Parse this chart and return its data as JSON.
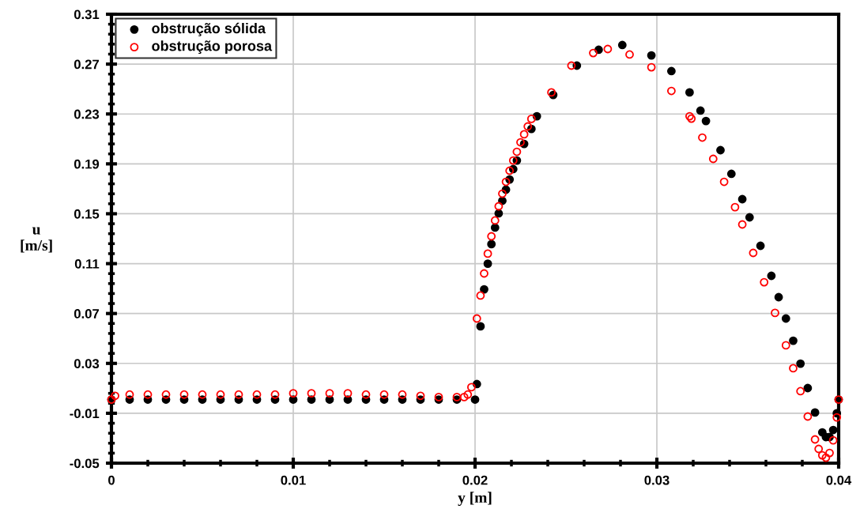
{
  "chart_data": {
    "type": "scatter",
    "xlabel": "y [m]",
    "ylabel": "u\n[m/s]",
    "xlim": [
      0,
      0.04
    ],
    "xticks": [
      0,
      0.01,
      0.02,
      0.03,
      0.04
    ],
    "ylim": [
      -0.05,
      0.31
    ],
    "yticks": [
      -0.05,
      -0.01,
      0.03,
      0.07,
      0.11,
      0.15,
      0.19,
      0.23,
      0.27,
      0.31
    ],
    "grid": true,
    "legend": "top left",
    "marker": "circle",
    "series": [
      {
        "name": "obstrução sólida",
        "color": "#000000",
        "x": [
          0,
          0.001,
          0.002,
          0.003,
          0.004,
          0.005,
          0.006,
          0.007,
          0.008,
          0.009,
          0.01,
          0.011,
          0.012,
          0.013,
          0.014,
          0.015,
          0.016,
          0.017,
          0.018,
          0.019,
          0.02,
          0.0201,
          0.0203,
          0.0205,
          0.0207,
          0.0209,
          0.0211,
          0.0213,
          0.0215,
          0.0217,
          0.0219,
          0.0221,
          0.0223,
          0.0227,
          0.0231,
          0.0234,
          0.0243,
          0.0256,
          0.0268,
          0.0281,
          0.0297,
          0.0308,
          0.0318,
          0.0324,
          0.0327,
          0.0335,
          0.0341,
          0.0347,
          0.0351,
          0.0357,
          0.0363,
          0.0367,
          0.0371,
          0.0375,
          0.0379,
          0.0383,
          0.0387,
          0.0391,
          0.0393,
          0.0395,
          0.0397,
          0.0399,
          0.04
        ],
        "values": [
          0.001,
          0.001,
          0.001,
          0.001,
          0.001,
          0.001,
          0.001,
          0.001,
          0.001,
          0.001,
          0.001,
          0.001,
          0.001,
          0.001,
          0.001,
          0.001,
          0.001,
          0.001,
          0.001,
          0.001,
          0.001,
          0.0134,
          0.0597,
          0.0894,
          0.11,
          0.1256,
          0.1389,
          0.1503,
          0.1604,
          0.1693,
          0.1775,
          0.1858,
          0.1927,
          0.206,
          0.218,
          0.2282,
          0.2453,
          0.2688,
          0.2815,
          0.2853,
          0.277,
          0.2644,
          0.2473,
          0.2327,
          0.2244,
          0.201,
          0.182,
          0.1617,
          0.1471,
          0.1243,
          0.1002,
          0.0831,
          0.066,
          0.0482,
          0.0298,
          0.0102,
          -0.0094,
          -0.0253,
          -0.0291,
          -0.0291,
          -0.0234,
          -0.01,
          0.001
        ]
      },
      {
        "name": "obstrução porosa",
        "color": "#ff0000",
        "x": [
          0,
          0.0002,
          0.001,
          0.002,
          0.003,
          0.004,
          0.005,
          0.006,
          0.007,
          0.008,
          0.009,
          0.01,
          0.011,
          0.012,
          0.013,
          0.014,
          0.015,
          0.016,
          0.017,
          0.018,
          0.019,
          0.0194,
          0.0196,
          0.0198,
          0.0201,
          0.0203,
          0.0205,
          0.0207,
          0.0209,
          0.0211,
          0.0213,
          0.0215,
          0.0217,
          0.0219,
          0.0221,
          0.0223,
          0.0225,
          0.0227,
          0.0229,
          0.0231,
          0.0242,
          0.0253,
          0.0265,
          0.0273,
          0.0285,
          0.0297,
          0.0308,
          0.0318,
          0.0319,
          0.0325,
          0.0331,
          0.0337,
          0.0343,
          0.0347,
          0.0353,
          0.0359,
          0.0365,
          0.0371,
          0.0375,
          0.0379,
          0.0383,
          0.0387,
          0.0389,
          0.0391,
          0.0393,
          0.0395,
          0.0397,
          0.0399,
          0.04
        ],
        "values": [
          0.001,
          0.004,
          0.005,
          0.005,
          0.005,
          0.005,
          0.005,
          0.005,
          0.005,
          0.005,
          0.005,
          0.006,
          0.006,
          0.006,
          0.006,
          0.005,
          0.005,
          0.005,
          0.004,
          0.003,
          0.003,
          0.003,
          0.005,
          0.0109,
          0.066,
          0.0844,
          0.1021,
          0.118,
          0.1319,
          0.1446,
          0.156,
          0.1661,
          0.1756,
          0.1845,
          0.1927,
          0.1997,
          0.2073,
          0.2137,
          0.22,
          0.2261,
          0.2473,
          0.2688,
          0.2789,
          0.2821,
          0.2777,
          0.2675,
          0.2485,
          0.2282,
          0.2263,
          0.2111,
          0.194,
          0.1756,
          0.1553,
          0.1414,
          0.1186,
          0.0951,
          0.0705,
          0.0445,
          0.0261,
          0.0077,
          -0.0126,
          -0.031,
          -0.0386,
          -0.0437,
          -0.0456,
          -0.0418,
          -0.0317,
          -0.0133,
          0.001
        ]
      }
    ]
  }
}
